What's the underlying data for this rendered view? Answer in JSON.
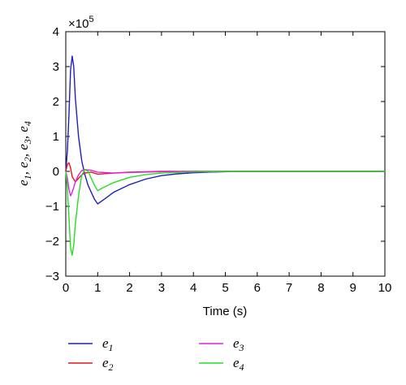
{
  "chart_data": {
    "type": "line",
    "xlabel": "Time (s)",
    "ylabel_parts": [
      {
        "base": "e",
        "sub": "1"
      },
      {
        "base": "e",
        "sub": "2"
      },
      {
        "base": "e",
        "sub": "3"
      },
      {
        "base": "e",
        "sub": "4"
      }
    ],
    "exponent_label": {
      "prefix": "×10",
      "power": "5"
    },
    "xlim": [
      0,
      10
    ],
    "ylim": [
      -3,
      4
    ],
    "xticks": [
      0,
      1,
      2,
      3,
      4,
      5,
      6,
      7,
      8,
      9,
      10
    ],
    "yticks": [
      -3,
      -2,
      -1,
      0,
      1,
      2,
      3,
      4
    ],
    "grid": false,
    "legend_position": "bottom",
    "series": [
      {
        "name": "e1",
        "label_base": "e",
        "label_sub": "1",
        "color": "#1f1fbf",
        "x": [
          0,
          0.05,
          0.1,
          0.15,
          0.2,
          0.25,
          0.3,
          0.4,
          0.5,
          0.6,
          0.7,
          0.8,
          0.9,
          1.0,
          1.2,
          1.5,
          2.0,
          2.5,
          3.0,
          3.5,
          4.0,
          4.5,
          5.0,
          5.5,
          6,
          7,
          8,
          9,
          10
        ],
        "y": [
          0,
          0.6,
          1.6,
          2.9,
          3.3,
          3.0,
          2.1,
          1.0,
          0.3,
          -0.1,
          -0.4,
          -0.6,
          -0.8,
          -0.93,
          -0.8,
          -0.6,
          -0.38,
          -0.22,
          -0.12,
          -0.07,
          -0.04,
          -0.02,
          -0.01,
          0,
          0,
          0,
          0,
          0,
          0
        ]
      },
      {
        "name": "e2",
        "label_base": "e",
        "label_sub": "2",
        "color": "#e8141e",
        "x": [
          0,
          0.05,
          0.1,
          0.15,
          0.2,
          0.3,
          0.4,
          0.5,
          0.6,
          0.8,
          1.0,
          1.5,
          2.0,
          3.0,
          5.0,
          10
        ],
        "y": [
          0,
          0.2,
          0.25,
          0.1,
          -0.15,
          -0.3,
          -0.2,
          -0.1,
          -0.05,
          -0.02,
          -0.08,
          -0.05,
          -0.02,
          0,
          0,
          0
        ]
      },
      {
        "name": "e3",
        "label_base": "e",
        "label_sub": "3",
        "color": "#e020e0",
        "x": [
          0,
          0.05,
          0.1,
          0.15,
          0.2,
          0.3,
          0.4,
          0.5,
          0.6,
          0.8,
          1.0,
          1.5,
          2.0,
          3.0,
          4.0,
          5.0,
          10
        ],
        "y": [
          0,
          -0.2,
          -0.5,
          -0.7,
          -0.6,
          -0.3,
          -0.1,
          0.02,
          0.05,
          0.03,
          -0.02,
          -0.05,
          -0.03,
          -0.01,
          0,
          0,
          0
        ]
      },
      {
        "name": "e4",
        "label_base": "e",
        "label_sub": "4",
        "color": "#22e022",
        "x": [
          0,
          0.05,
          0.1,
          0.15,
          0.2,
          0.25,
          0.3,
          0.4,
          0.5,
          0.6,
          0.7,
          0.8,
          0.9,
          1.0,
          1.2,
          1.5,
          2.0,
          2.5,
          3.0,
          3.5,
          4.0,
          4.5,
          5.0,
          6,
          10
        ],
        "y": [
          0,
          -0.5,
          -1.3,
          -2.2,
          -2.4,
          -2.1,
          -1.5,
          -0.7,
          -0.1,
          0.05,
          0.0,
          -0.2,
          -0.4,
          -0.55,
          -0.45,
          -0.32,
          -0.17,
          -0.09,
          -0.05,
          -0.03,
          -0.015,
          -0.01,
          0,
          0,
          0
        ]
      }
    ]
  }
}
